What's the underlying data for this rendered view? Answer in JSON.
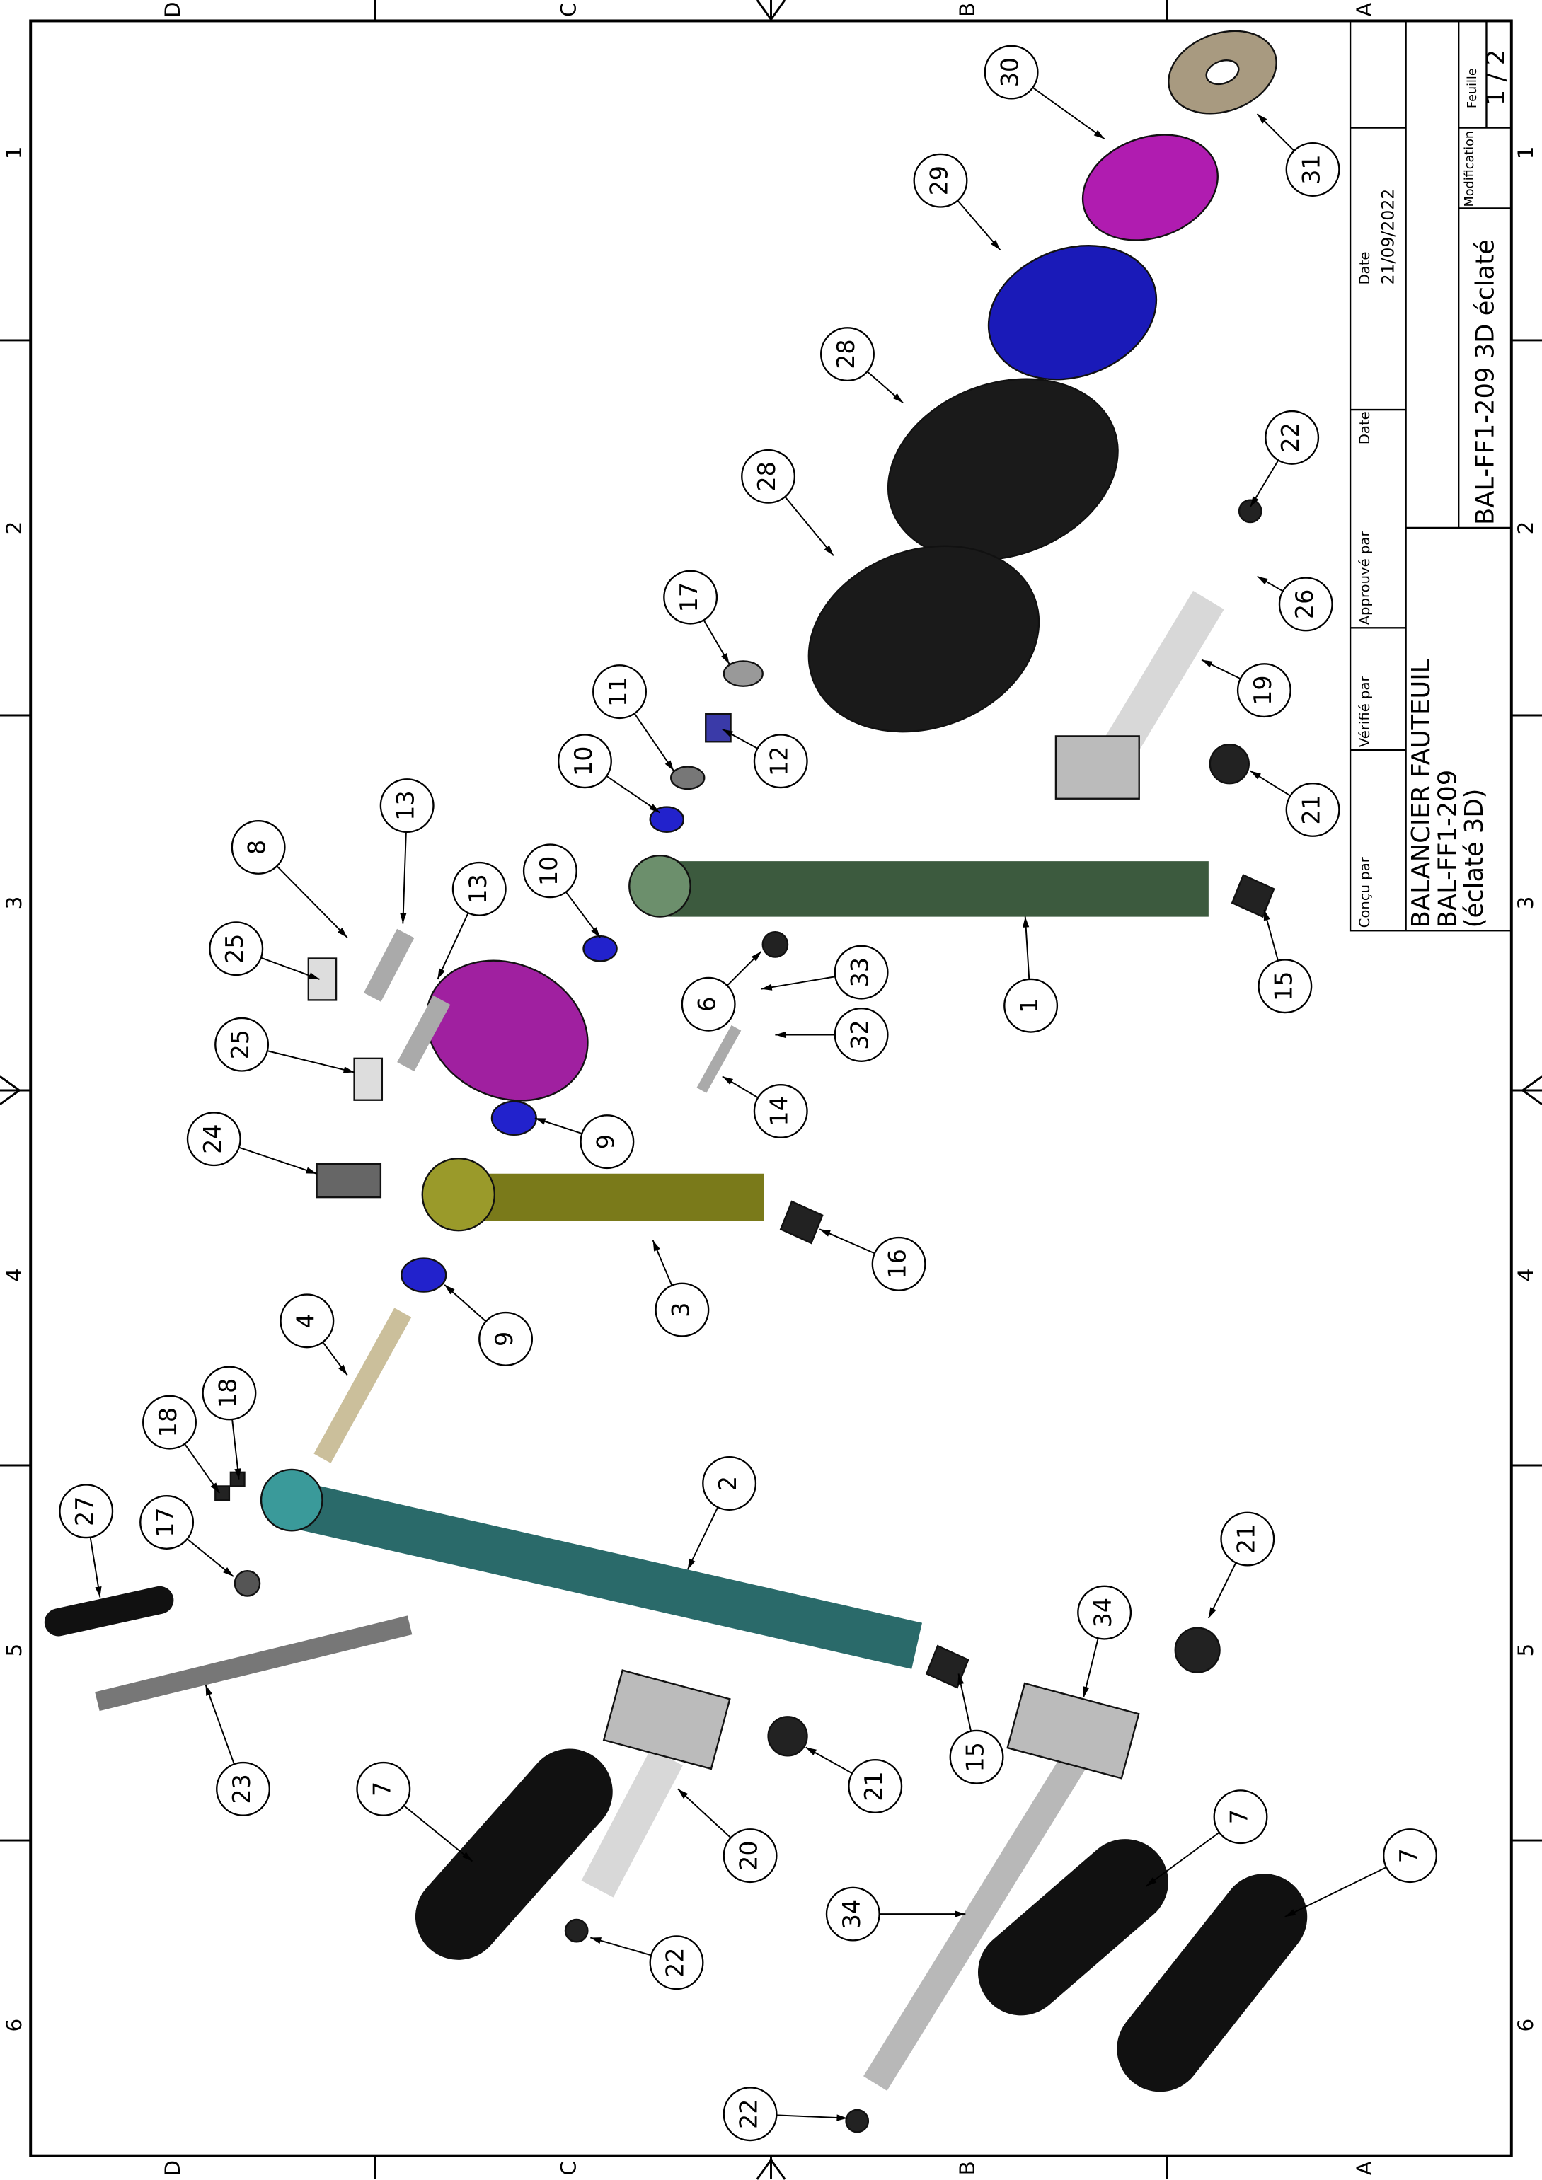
{
  "zones": {
    "letters_top": [
      "D",
      "C",
      "B",
      "A"
    ],
    "letters_bottom": [
      "D",
      "C",
      "B",
      "A"
    ],
    "numbers_left": [
      "1",
      "2",
      "3",
      "4",
      "5",
      "6"
    ],
    "numbers_right": [
      "1",
      "2",
      "3",
      "4",
      "5",
      "6"
    ]
  },
  "balloons": [
    "30",
    "31",
    "29",
    "28",
    "28",
    "22",
    "26",
    "17",
    "11",
    "12",
    "10",
    "19",
    "21",
    "13",
    "8",
    "10",
    "13",
    "25",
    "6",
    "33",
    "1",
    "15",
    "25",
    "32",
    "14",
    "24",
    "9",
    "16",
    "3",
    "9",
    "4",
    "18",
    "18",
    "27",
    "17",
    "2",
    "21",
    "34",
    "15",
    "21",
    "23",
    "20",
    "7",
    "7",
    "7",
    "34",
    "22",
    "22"
  ],
  "title_block": {
    "designed_by": "Conçu par",
    "checked_by": "Vérifié par",
    "approved_by": "Approuvé par",
    "date_label_1": "Date",
    "date_label_2": "Date",
    "date_value": "21/09/2022",
    "title": "BALANCIER FAUTEUIL",
    "reference": "BAL-FF1-209",
    "subtitle": "(éclaté 3D)",
    "file_name": "BAL-FF1-209 3D éclaté",
    "modification": "Modification",
    "sheet_label": "Feuille",
    "sheet": "1 / 2"
  }
}
